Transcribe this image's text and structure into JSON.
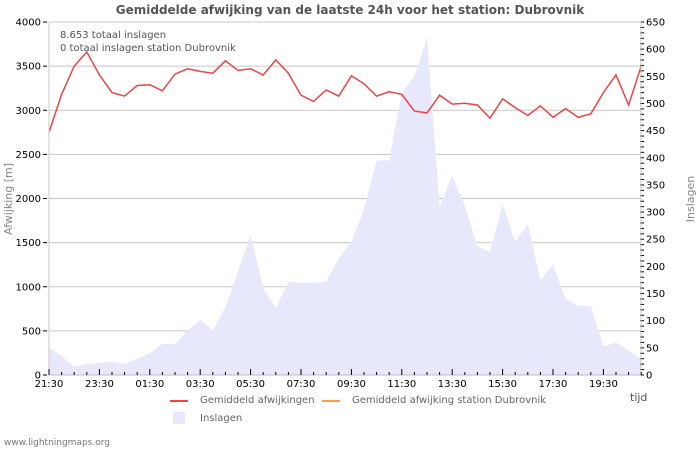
{
  "chart_data": {
    "type": "line",
    "title": "Gemiddelde afwijking van de laatste 24h voor het station: Dubrovnik",
    "xlabel": "tijd",
    "ylabel": "Afwijking  [m]",
    "ylabel_right": "Inslagen",
    "ylim": [
      0,
      4000
    ],
    "ylim_right": [
      0,
      650
    ],
    "yticks": [
      0,
      500,
      1000,
      1500,
      2000,
      2500,
      3000,
      3500,
      4000
    ],
    "yticks_right": [
      0,
      50,
      100,
      150,
      200,
      250,
      300,
      350,
      400,
      450,
      500,
      550,
      600,
      650
    ],
    "xtick_labels": [
      "21:30",
      "23:30",
      "01:30",
      "03:30",
      "05:30",
      "07:30",
      "09:30",
      "11:30",
      "13:30",
      "15:30",
      "17:30",
      "19:30"
    ],
    "grid": true,
    "legend_position": "bottom",
    "annotations": [
      "8.653 totaal inslagen",
      "0 totaal inslagen station Dubrovnik"
    ],
    "series": [
      {
        "name": "Gemiddeld afwijkingen",
        "type": "line",
        "axis": "left",
        "color": "#ee4444",
        "values": [
          2750,
          3180,
          3500,
          3660,
          3400,
          3200,
          3160,
          3280,
          3290,
          3220,
          3410,
          3470,
          3440,
          3420,
          3560,
          3450,
          3470,
          3400,
          3570,
          3420,
          3170,
          3100,
          3230,
          3160,
          3390,
          3300,
          3160,
          3210,
          3180,
          2990,
          2970,
          3170,
          3070,
          3080,
          3060,
          2910,
          3130,
          3030,
          2940,
          3050,
          2920,
          3020,
          2920,
          2960,
          3200,
          3400,
          3060,
          3500
        ]
      },
      {
        "name": "Gemiddeld afwijking station Dubrovnik",
        "type": "line",
        "axis": "left",
        "color": "#ff9955",
        "values": []
      },
      {
        "name": "Inslagen",
        "type": "area",
        "axis": "right",
        "color": "#e8e8fc",
        "values": [
          50,
          35,
          15,
          20,
          22,
          25,
          20,
          30,
          40,
          57,
          57,
          82,
          102,
          82,
          125,
          190,
          258,
          160,
          123,
          172,
          170,
          170,
          172,
          215,
          245,
          305,
          395,
          395,
          520,
          550,
          620,
          310,
          367,
          312,
          237,
          226,
          315,
          245,
          278,
          175,
          203,
          140,
          127,
          127,
          52,
          60,
          45,
          30
        ]
      }
    ]
  },
  "header": {
    "title": "Gemiddelde afwijking van de laatste 24h voor het station: Dubrovnik"
  },
  "notes": {
    "total": "8.653 totaal inslagen",
    "station_total": "0 totaal inslagen station Dubrovnik"
  },
  "legend": {
    "items": [
      {
        "label": "Gemiddeld afwijkingen",
        "color": "#ee4444"
      },
      {
        "label": "Gemiddeld afwijking station Dubrovnik",
        "color": "#ff9955"
      },
      {
        "label": "Inslagen",
        "color": "#e8e8fc"
      }
    ]
  },
  "axes": {
    "x_title": "tijd",
    "y_title": "Afwijking  [m]",
    "y2_title": "Inslagen"
  },
  "footer": {
    "text": "www.lightningmaps.org"
  }
}
